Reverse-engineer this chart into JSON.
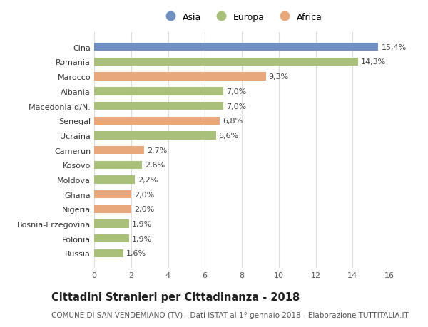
{
  "categories": [
    "Russia",
    "Polonia",
    "Bosnia-Erzegovina",
    "Nigeria",
    "Ghana",
    "Moldova",
    "Kosovo",
    "Camerun",
    "Ucraina",
    "Senegal",
    "Macedonia d/N.",
    "Albania",
    "Marocco",
    "Romania",
    "Cina"
  ],
  "values": [
    1.6,
    1.9,
    1.9,
    2.0,
    2.0,
    2.2,
    2.6,
    2.7,
    6.6,
    6.8,
    7.0,
    7.0,
    9.3,
    14.3,
    15.4
  ],
  "continents": [
    "Europa",
    "Europa",
    "Europa",
    "Africa",
    "Africa",
    "Europa",
    "Europa",
    "Africa",
    "Europa",
    "Africa",
    "Europa",
    "Europa",
    "Africa",
    "Europa",
    "Asia"
  ],
  "colors": {
    "Asia": "#7090c0",
    "Europa": "#a8c07a",
    "Africa": "#e8a87c"
  },
  "legend_labels": [
    "Asia",
    "Europa",
    "Africa"
  ],
  "xlim": [
    0,
    16
  ],
  "xticks": [
    0,
    2,
    4,
    6,
    8,
    10,
    12,
    14,
    16
  ],
  "title": "Cittadini Stranieri per Cittadinanza - 2018",
  "subtitle": "COMUNE DI SAN VENDEMIANO (TV) - Dati ISTAT al 1° gennaio 2018 - Elaborazione TUTTITALIA.IT",
  "bg_color": "#ffffff",
  "grid_color": "#dddddd",
  "bar_height": 0.55,
  "label_fontsize": 8,
  "tick_fontsize": 8,
  "title_fontsize": 10.5,
  "subtitle_fontsize": 7.5
}
